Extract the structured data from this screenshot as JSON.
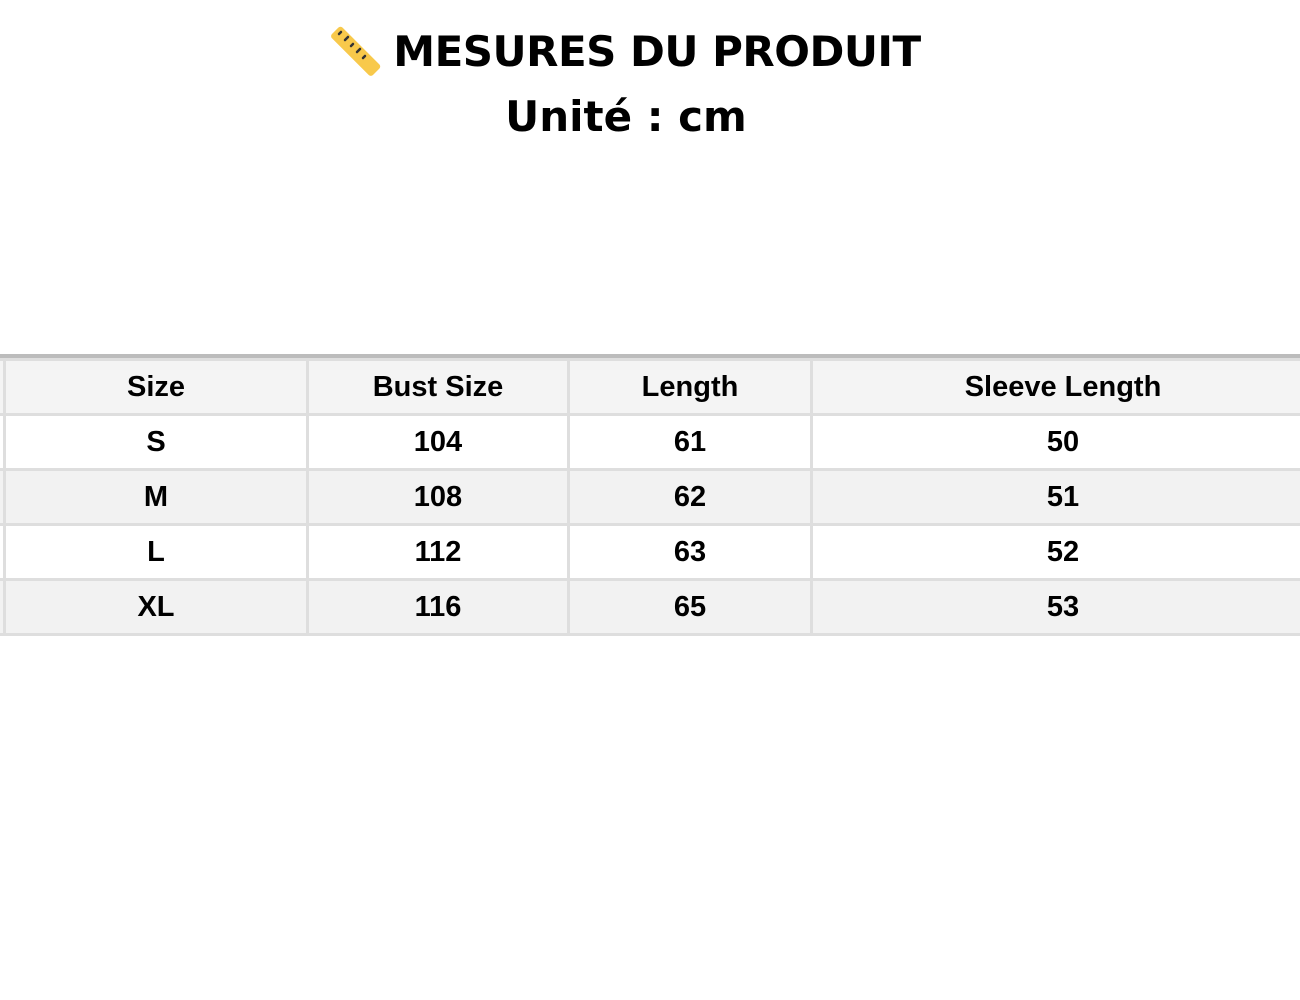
{
  "header": {
    "icon": "ruler-icon",
    "title": "MESURES DU PRODUIT",
    "subtitle": "Unité : cm"
  },
  "table": {
    "columns": [
      "Size",
      "Bust Size",
      "Length",
      "Sleeve Length"
    ],
    "rows": [
      [
        "S",
        "104",
        "61",
        "50"
      ],
      [
        "M",
        "108",
        "62",
        "51"
      ],
      [
        "L",
        "112",
        "63",
        "52"
      ],
      [
        "XL",
        "116",
        "65",
        "53"
      ]
    ]
  },
  "colors": {
    "ruler": "#F8C94B",
    "header_bg": "#f4f4f4",
    "stripe_bg": "#f2f2f2",
    "border": "#dedede"
  }
}
